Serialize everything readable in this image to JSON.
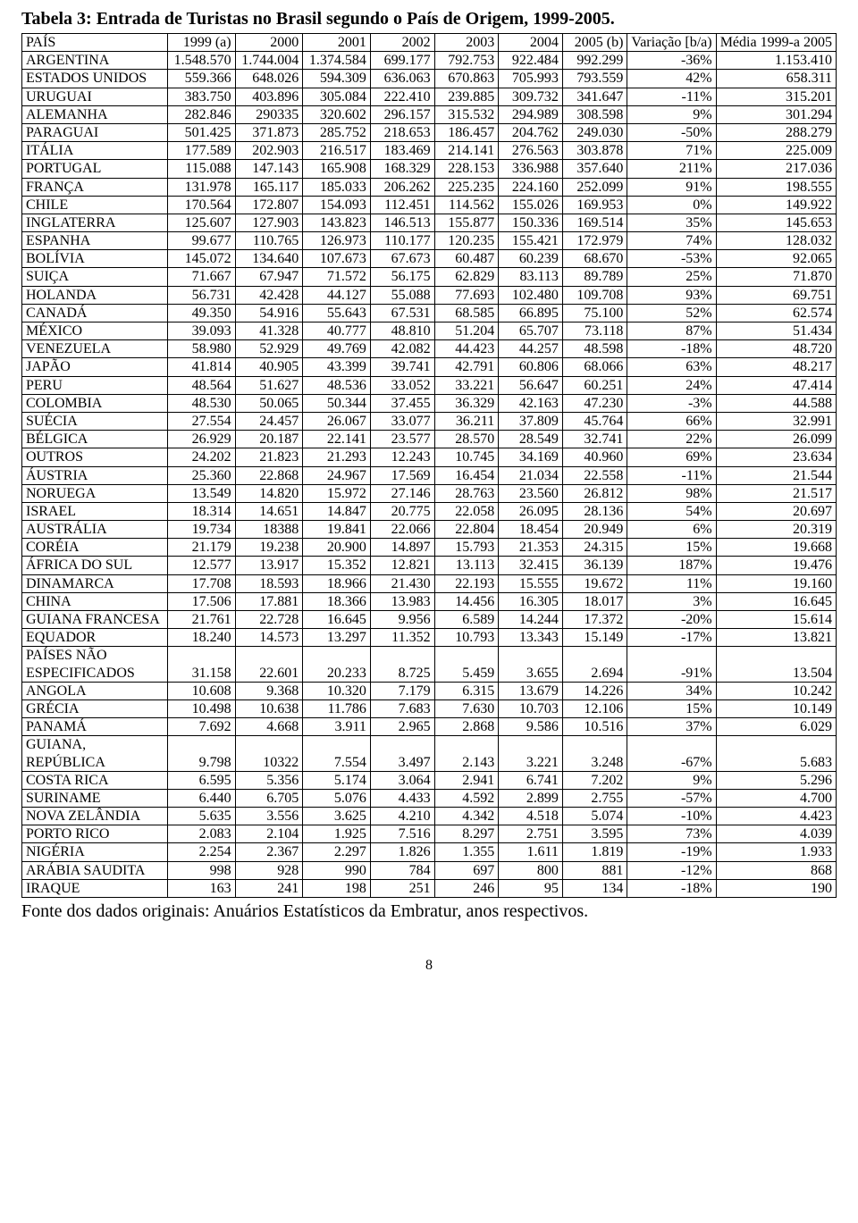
{
  "title": "Tabela 3: Entrada de Turistas no Brasil segundo o País de Origem, 1999-2005.",
  "columns": [
    "PAÍS",
    "1999 (a)",
    "2000",
    "2001",
    "2002",
    "2003",
    "2004",
    "2005 (b)",
    "Variação [b/a)",
    "Média 1999-a 2005"
  ],
  "footer_note": "Fonte dos dados originais: Anuários Estatísticos da Embratur, anos respectivos.",
  "page_number": "8",
  "rows": [
    {
      "country": "ARGENTINA",
      "v": [
        "1.548.570",
        "1.744.004",
        "1.374.584",
        "699.177",
        "792.753",
        "922.484",
        "992.299",
        "-36%",
        "1.153.410"
      ]
    },
    {
      "country": "ESTADOS UNIDOS",
      "v": [
        "559.366",
        "648.026",
        "594.309",
        "636.063",
        "670.863",
        "705.993",
        "793.559",
        "42%",
        "658.311"
      ]
    },
    {
      "country": "URUGUAI",
      "v": [
        "383.750",
        "403.896",
        "305.084",
        "222.410",
        "239.885",
        "309.732",
        "341.647",
        "-11%",
        "315.201"
      ]
    },
    {
      "country": "ALEMANHA",
      "v": [
        "282.846",
        "290335",
        "320.602",
        "296.157",
        "315.532",
        "294.989",
        "308.598",
        "9%",
        "301.294"
      ]
    },
    {
      "country": "PARAGUAI",
      "v": [
        "501.425",
        "371.873",
        "285.752",
        "218.653",
        "186.457",
        "204.762",
        "249.030",
        "-50%",
        "288.279"
      ]
    },
    {
      "country": "ITÁLIA",
      "v": [
        "177.589",
        "202.903",
        "216.517",
        "183.469",
        "214.141",
        "276.563",
        "303.878",
        "71%",
        "225.009"
      ]
    },
    {
      "country": "PORTUGAL",
      "v": [
        "115.088",
        "147.143",
        "165.908",
        "168.329",
        "228.153",
        "336.988",
        "357.640",
        "211%",
        "217.036"
      ]
    },
    {
      "country": "FRANÇA",
      "v": [
        "131.978",
        "165.117",
        "185.033",
        "206.262",
        "225.235",
        "224.160",
        "252.099",
        "91%",
        "198.555"
      ]
    },
    {
      "country": "CHILE",
      "v": [
        "170.564",
        "172.807",
        "154.093",
        "112.451",
        "114.562",
        "155.026",
        "169.953",
        "0%",
        "149.922"
      ]
    },
    {
      "country": "INGLATERRA",
      "v": [
        "125.607",
        "127.903",
        "143.823",
        "146.513",
        "155.877",
        "150.336",
        "169.514",
        "35%",
        "145.653"
      ]
    },
    {
      "country": "ESPANHA",
      "v": [
        "99.677",
        "110.765",
        "126.973",
        "110.177",
        "120.235",
        "155.421",
        "172.979",
        "74%",
        "128.032"
      ]
    },
    {
      "country": "BOLÍVIA",
      "v": [
        "145.072",
        "134.640",
        "107.673",
        "67.673",
        "60.487",
        "60.239",
        "68.670",
        "-53%",
        "92.065"
      ]
    },
    {
      "country": "SUIÇA",
      "v": [
        "71.667",
        "67.947",
        "71.572",
        "56.175",
        "62.829",
        "83.113",
        "89.789",
        "25%",
        "71.870"
      ]
    },
    {
      "country": "HOLANDA",
      "v": [
        "56.731",
        "42.428",
        "44.127",
        "55.088",
        "77.693",
        "102.480",
        "109.708",
        "93%",
        "69.751"
      ]
    },
    {
      "country": "CANADÁ",
      "v": [
        "49.350",
        "54.916",
        "55.643",
        "67.531",
        "68.585",
        "66.895",
        "75.100",
        "52%",
        "62.574"
      ]
    },
    {
      "country": "MÉXICO",
      "v": [
        "39.093",
        "41.328",
        "40.777",
        "48.810",
        "51.204",
        "65.707",
        "73.118",
        "87%",
        "51.434"
      ]
    },
    {
      "country": "VENEZUELA",
      "v": [
        "58.980",
        "52.929",
        "49.769",
        "42.082",
        "44.423",
        "44.257",
        "48.598",
        "-18%",
        "48.720"
      ]
    },
    {
      "country": "JAPÃO",
      "v": [
        "41.814",
        "40.905",
        "43.399",
        "39.741",
        "42.791",
        "60.806",
        "68.066",
        "63%",
        "48.217"
      ]
    },
    {
      "country": "PERU",
      "v": [
        "48.564",
        "51.627",
        "48.536",
        "33.052",
        "33.221",
        "56.647",
        "60.251",
        "24%",
        "47.414"
      ]
    },
    {
      "country": "COLOMBIA",
      "v": [
        "48.530",
        "50.065",
        "50.344",
        "37.455",
        "36.329",
        "42.163",
        "47.230",
        "-3%",
        "44.588"
      ]
    },
    {
      "country": "SUÉCIA",
      "v": [
        "27.554",
        "24.457",
        "26.067",
        "33.077",
        "36.211",
        "37.809",
        "45.764",
        "66%",
        "32.991"
      ]
    },
    {
      "country": "BÉLGICA",
      "v": [
        "26.929",
        "20.187",
        "22.141",
        "23.577",
        "28.570",
        "28.549",
        "32.741",
        "22%",
        "26.099"
      ]
    },
    {
      "country": "OUTROS",
      "v": [
        "24.202",
        "21.823",
        "21.293",
        "12.243",
        "10.745",
        "34.169",
        "40.960",
        "69%",
        "23.634"
      ]
    },
    {
      "country": "ÁUSTRIA",
      "v": [
        "25.360",
        "22.868",
        "24.967",
        "17.569",
        "16.454",
        "21.034",
        "22.558",
        "-11%",
        "21.544"
      ]
    },
    {
      "country": "NORUEGA",
      "v": [
        "13.549",
        "14.820",
        "15.972",
        "27.146",
        "28.763",
        "23.560",
        "26.812",
        "98%",
        "21.517"
      ]
    },
    {
      "country": "ISRAEL",
      "v": [
        "18.314",
        "14.651",
        "14.847",
        "20.775",
        "22.058",
        "26.095",
        "28.136",
        "54%",
        "20.697"
      ]
    },
    {
      "country": "AUSTRÁLIA",
      "v": [
        "19.734",
        "18388",
        "19.841",
        "22.066",
        "22.804",
        "18.454",
        "20.949",
        "6%",
        "20.319"
      ]
    },
    {
      "country": "CORÉIA",
      "v": [
        "21.179",
        "19.238",
        "20.900",
        "14.897",
        "15.793",
        "21.353",
        "24.315",
        "15%",
        "19.668"
      ]
    },
    {
      "country": "ÁFRICA DO SUL",
      "v": [
        "12.577",
        "13.917",
        "15.352",
        "12.821",
        "13.113",
        "32.415",
        "36.139",
        "187%",
        "19.476"
      ]
    },
    {
      "country": "DINAMARCA",
      "v": [
        "17.708",
        "18.593",
        "18.966",
        "21.430",
        "22.193",
        "15.555",
        "19.672",
        "11%",
        "19.160"
      ]
    },
    {
      "country": "CHINA",
      "v": [
        "17.506",
        "17.881",
        "18.366",
        "13.983",
        "14.456",
        "16.305",
        "18.017",
        "3%",
        "16.645"
      ]
    },
    {
      "country": "GUIANA FRANCESA",
      "v": [
        "21.761",
        "22.728",
        "16.645",
        "9.956",
        "6.589",
        "14.244",
        "17.372",
        "-20%",
        "15.614"
      ]
    },
    {
      "country": "EQUADOR",
      "v": [
        "18.240",
        "14.573",
        "13.297",
        "11.352",
        "10.793",
        "13.343",
        "15.149",
        "-17%",
        "13.821"
      ]
    },
    {
      "country": "PAÍSES NÃO ESPECIFICADOS",
      "v": [
        "31.158",
        "22.601",
        "20.233",
        "8.725",
        "5.459",
        "3.655",
        "2.694",
        "-91%",
        "13.504"
      ]
    },
    {
      "country": "ANGOLA",
      "v": [
        "10.608",
        "9.368",
        "10.320",
        "7.179",
        "6.315",
        "13.679",
        "14.226",
        "34%",
        "10.242"
      ]
    },
    {
      "country": "GRÉCIA",
      "v": [
        "10.498",
        "10.638",
        "11.786",
        "7.683",
        "7.630",
        "10.703",
        "12.106",
        "15%",
        "10.149"
      ]
    },
    {
      "country": "PANAMÁ",
      "v": [
        "7.692",
        "4.668",
        "3.911",
        "2.965",
        "2.868",
        "9.586",
        "10.516",
        "37%",
        "6.029"
      ]
    },
    {
      "country": "GUIANA, REPÚBLICA",
      "v": [
        "9.798",
        "10322",
        "7.554",
        "3.497",
        "2.143",
        "3.221",
        "3.248",
        "-67%",
        "5.683"
      ]
    },
    {
      "country": "COSTA RICA",
      "v": [
        "6.595",
        "5.356",
        "5.174",
        "3.064",
        "2.941",
        "6.741",
        "7.202",
        "9%",
        "5.296"
      ]
    },
    {
      "country": "SURINAME",
      "v": [
        "6.440",
        "6.705",
        "5.076",
        "4.433",
        "4.592",
        "2.899",
        "2.755",
        "-57%",
        "4.700"
      ]
    },
    {
      "country": "NOVA ZELÂNDIA",
      "v": [
        "5.635",
        "3.556",
        "3.625",
        "4.210",
        "4.342",
        "4.518",
        "5.074",
        "-10%",
        "4.423"
      ]
    },
    {
      "country": "PORTO RICO",
      "v": [
        "2.083",
        "2.104",
        "1.925",
        "7.516",
        "8.297",
        "2.751",
        "3.595",
        "73%",
        "4.039"
      ]
    },
    {
      "country": "NIGÉRIA",
      "v": [
        "2.254",
        "2.367",
        "2.297",
        "1.826",
        "1.355",
        "1.611",
        "1.819",
        "-19%",
        "1.933"
      ]
    },
    {
      "country": "ARÁBIA SAUDITA",
      "v": [
        "998",
        "928",
        "990",
        "784",
        "697",
        "800",
        "881",
        "-12%",
        "868"
      ]
    },
    {
      "country": "IRAQUE",
      "v": [
        "163",
        "241",
        "198",
        "251",
        "246",
        "95",
        "134",
        "-18%",
        "190"
      ]
    }
  ]
}
